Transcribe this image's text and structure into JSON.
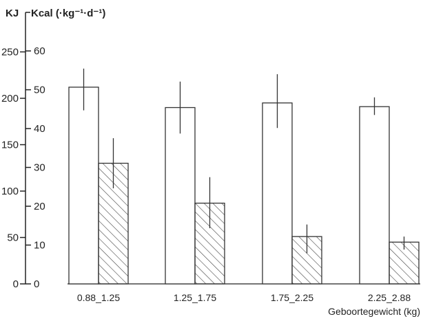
{
  "chart_data": {
    "type": "bar",
    "title": "",
    "y_label_kj": "KJ",
    "y_label_kcal": "Kcal (·kg⁻¹·d⁻¹)",
    "xlabel": "Geboortegewicht (kg)",
    "categories": [
      "0.88_1.25",
      "1.25_1.75",
      "1.75_2.25",
      "2.25_2.88"
    ],
    "series": [
      {
        "pattern": "open",
        "values": [
          212,
          190,
          195,
          191
        ],
        "error_low": [
          187,
          162,
          168,
          182
        ],
        "error_high": [
          232,
          218,
          226,
          201
        ]
      },
      {
        "pattern": "hatched",
        "values": [
          130,
          87,
          51,
          45
        ],
        "error_low": [
          103,
          60,
          33,
          37
        ],
        "error_high": [
          157,
          115,
          64,
          51
        ]
      }
    ],
    "kj_axis": {
      "ticks": [
        "0",
        "50",
        "100",
        "150",
        "200",
        "250"
      ],
      "range": [
        0,
        280
      ]
    },
    "kcal_axis": {
      "ticks": [
        "0",
        "10",
        "20",
        "30",
        "40",
        "50",
        "60"
      ]
    },
    "colors": {
      "open_fill": "#ffffff",
      "stroke": "#333333",
      "hatch": "#444444"
    }
  }
}
